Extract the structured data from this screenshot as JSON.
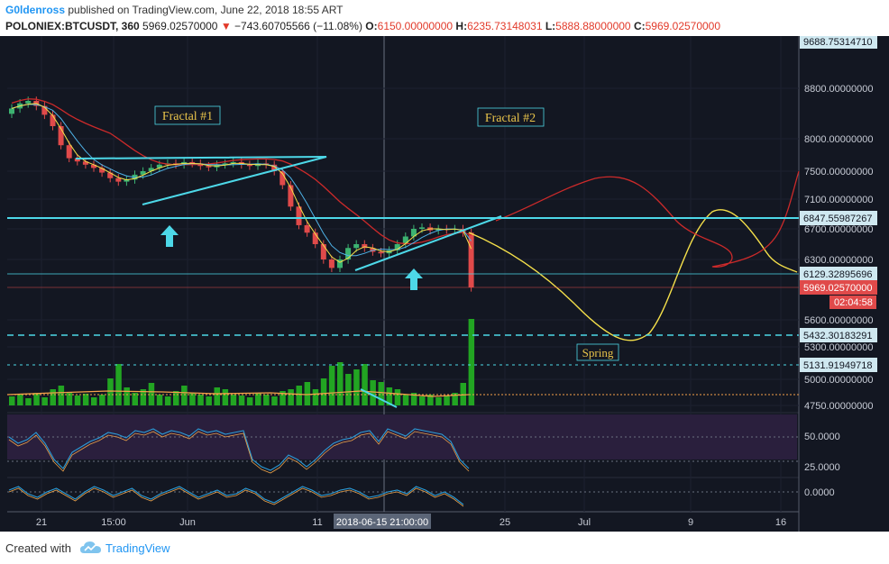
{
  "header": {
    "author": "G0ldenross",
    "published_text": "published on TradingView.com, June 22, 2018 18:55 ART",
    "symbol": "POLONIEX:BTCUSDT, 360",
    "last": "5969.02570000",
    "change_arrow": "▼",
    "change": "−743.60705566 (−11.08%)",
    "o_label": "O:",
    "o_value": "6150.00000000",
    "h_label": "H:",
    "h_value": "6235.73148031",
    "l_label": "L:",
    "l_value": "5888.88000000",
    "c_label": "C:",
    "c_value": "5969.02570000"
  },
  "footer": {
    "created_with": "Created with",
    "brand": "TradingView",
    "logo_icon": "tradingview-cloud-icon"
  },
  "colors": {
    "background": "#131722",
    "up_candle": "#3cb371",
    "down_candle": "#e04a4a",
    "annotation_cyan": "#4dd8e8",
    "projection_yellow": "#f5e04a",
    "ma_red": "#cc2a2a",
    "label_gold": "#e8c34a",
    "current_price": "#e04a4a",
    "rsi_fill": "#2a1f3d",
    "rsi_line": "#2b9cd8",
    "volume_green": "#22a522"
  },
  "chart_data": {
    "type": "candlestick",
    "symbol": "POLONIEX:BTCUSDT",
    "interval": "360",
    "x_ticks": [
      "21",
      "15:00",
      "Jun",
      "11",
      "25",
      "Jul",
      "9",
      "16"
    ],
    "crosshair_x_label": "2018-06-15 21:00:00",
    "y_ticks": [
      "8800.00000000",
      "8000.00000000",
      "7500.00000000",
      "7100.00000000",
      "6700.00000000",
      "6300.00000000",
      "5600.00000000",
      "5300.00000000",
      "5000.00000000",
      "4750.00000000"
    ],
    "y_price_labels": [
      "9688.75314710",
      "6847.55987267",
      "6129.32895696",
      "5969.02570000",
      "5432.30183291",
      "5131.91949718"
    ],
    "countdown": "02:04:58",
    "horizontal_levels": [
      6847.55987267,
      6129.32895696,
      5432.30183291,
      5131.91949718
    ],
    "annotations": [
      "Fractal #1",
      "Fractal #2",
      "Spring"
    ],
    "price_series_approx": [
      8480,
      8560,
      8600,
      8520,
      8380,
      8200,
      7900,
      7700,
      7650,
      7600,
      7550,
      7480,
      7400,
      7350,
      7380,
      7450,
      7500,
      7550,
      7600,
      7620,
      7600,
      7640,
      7620,
      7580,
      7560,
      7600,
      7620,
      7640,
      7600,
      7580,
      7620,
      7600,
      7500,
      7300,
      7000,
      6750,
      6650,
      6500,
      6300,
      6200,
      6300,
      6450,
      6500,
      6450,
      6400,
      6380,
      6420,
      6500,
      6600,
      6700,
      6720,
      6680,
      6700,
      6690,
      6700,
      6650,
      5969
    ],
    "rsi": {
      "levels": [
        "50.0000",
        "25.0000"
      ]
    },
    "macd": {
      "levels": [
        "0.0000"
      ]
    }
  }
}
